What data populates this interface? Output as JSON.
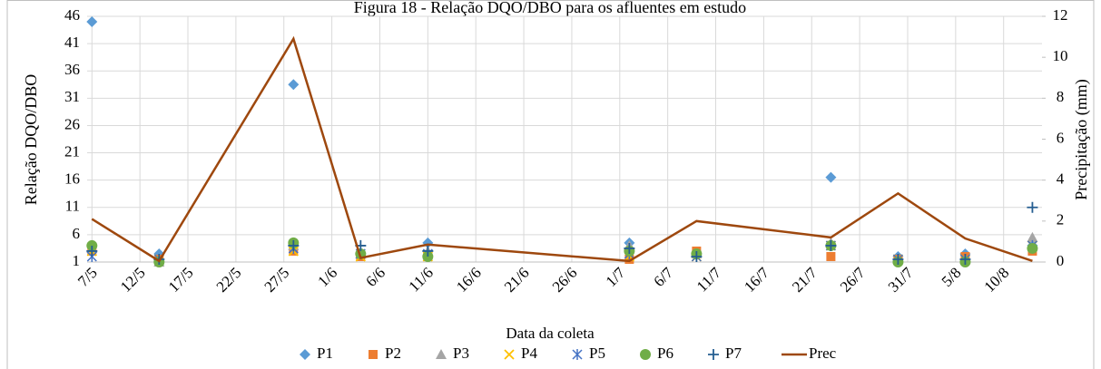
{
  "chart_data": {
    "type": "scatter",
    "title": "Figura 18 - Relação DQO/DBO para os afluentes em estudo",
    "x_label": "Data da coleta",
    "y_label": "Relação DQO/DBO",
    "y2_label": "Precipitação  (mm)",
    "x": [
      0,
      7,
      21,
      28,
      35,
      56,
      63,
      77,
      84,
      91,
      98
    ],
    "xlim": [
      -0.5,
      99
    ],
    "xticks": [
      {
        "value": 0,
        "label": "7/5"
      },
      {
        "value": 5,
        "label": "12/5"
      },
      {
        "value": 10,
        "label": "17/5"
      },
      {
        "value": 15,
        "label": "22/5"
      },
      {
        "value": 20,
        "label": "27/5"
      },
      {
        "value": 25,
        "label": "1/6"
      },
      {
        "value": 30,
        "label": "6/6"
      },
      {
        "value": 35,
        "label": "11/6"
      },
      {
        "value": 40,
        "label": "16/6"
      },
      {
        "value": 45,
        "label": "21/6"
      },
      {
        "value": 50,
        "label": "26/6"
      },
      {
        "value": 55,
        "label": "1/7"
      },
      {
        "value": 60,
        "label": "6/7"
      },
      {
        "value": 65,
        "label": "11/7"
      },
      {
        "value": 70,
        "label": "16/7"
      },
      {
        "value": 75,
        "label": "21/7"
      },
      {
        "value": 80,
        "label": "26/7"
      },
      {
        "value": 85,
        "label": "31/7"
      },
      {
        "value": 90,
        "label": "5/8"
      },
      {
        "value": 95,
        "label": "10/8"
      }
    ],
    "ylim": [
      1,
      46
    ],
    "yticks": [
      1,
      6,
      11,
      16,
      21,
      26,
      31,
      36,
      41,
      46
    ],
    "y2lim": [
      0,
      12
    ],
    "y2ticks": [
      0,
      2,
      4,
      6,
      8,
      10,
      12
    ],
    "grid": true,
    "legend": "bottom",
    "series": [
      {
        "name": "P1",
        "color": "#5b9bd5",
        "marker": "diamond",
        "values": [
          45,
          2.5,
          33.5,
          2.5,
          4.5,
          4.5,
          2.5,
          16.5,
          2,
          2.5,
          4
        ]
      },
      {
        "name": "P2",
        "color": "#ed7d31",
        "marker": "square",
        "values": [
          3,
          1.5,
          3,
          2,
          2,
          1.5,
          3,
          2,
          1.5,
          2,
          3
        ]
      },
      {
        "name": "P3",
        "color": "#a5a5a5",
        "marker": "triangle",
        "values": [
          3.5,
          1,
          4,
          2.5,
          3,
          4,
          2.5,
          4.5,
          1.5,
          1.5,
          5.5
        ]
      },
      {
        "name": "P4",
        "color": "#ffc000",
        "marker": "x",
        "values": [
          3,
          1.5,
          3,
          2,
          2,
          2,
          2,
          4,
          1.5,
          1.5,
          4
        ]
      },
      {
        "name": "P5",
        "color": "#4472c4",
        "marker": "asterisk",
        "values": [
          2,
          1.5,
          3.5,
          2.5,
          2.5,
          2.5,
          2,
          4,
          1.5,
          1.5,
          4
        ]
      },
      {
        "name": "P6",
        "color": "#70ad47",
        "marker": "circle",
        "values": [
          4,
          1,
          4.5,
          2.5,
          2,
          3,
          2.5,
          4,
          1,
          1,
          3.5
        ]
      },
      {
        "name": "P7",
        "color": "#255e91",
        "marker": "plus",
        "values": [
          3,
          1.5,
          4,
          4,
          3,
          3.5,
          2,
          4,
          1.5,
          1.5,
          11
        ]
      },
      {
        "name": "Prec",
        "color": "#9e480e",
        "marker": "line",
        "axis": "y2",
        "values": [
          2.1,
          0.05,
          10.9,
          0.2,
          0.85,
          0.05,
          2.0,
          1.2,
          3.35,
          1.15,
          0.05
        ]
      }
    ]
  }
}
